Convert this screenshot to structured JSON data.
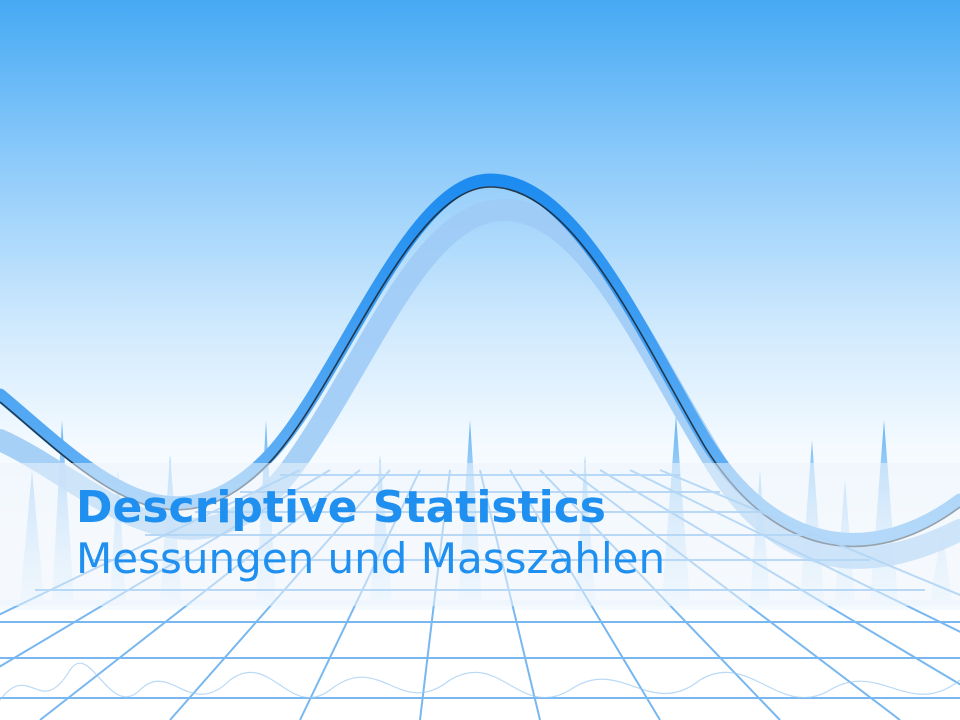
{
  "slide": {
    "title": "Descriptive Statistics",
    "subtitle": "Messungen und Masszahlen"
  },
  "colors": {
    "accent": "#1f8ff0",
    "sky_top": "#45a9f3",
    "grid": "#6ab0ee"
  },
  "decoration": {
    "background": "bell-curve-illustration",
    "elements": [
      "sky-gradient",
      "bell-curve-ribbon",
      "perspective-grid-floor",
      "waveform-spikes"
    ]
  }
}
